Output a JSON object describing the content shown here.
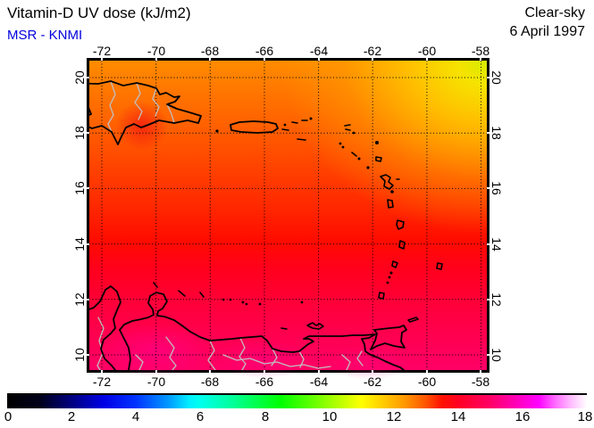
{
  "header": {
    "title": "Vitamin-D UV dose (kJ/m2)",
    "subtitle": "MSR - KNMI",
    "subtitle_color": "#0000dd",
    "condition": "Clear-sky",
    "date": "6 April 1997"
  },
  "map": {
    "lon_ticks": [
      "-72",
      "-70",
      "-68",
      "-66",
      "-64",
      "-62",
      "-60",
      "-58"
    ],
    "lat_ticks": [
      "20",
      "18",
      "16",
      "14",
      "12",
      "10"
    ]
  },
  "colorbar": {
    "min": 0,
    "max": 18,
    "tick_labels": [
      "0",
      "2",
      "4",
      "6",
      "8",
      "10",
      "12",
      "14",
      "16",
      "18"
    ],
    "stops": [
      {
        "at": 0.0,
        "color": "#000000"
      },
      {
        "at": 0.056,
        "color": "#00001a"
      },
      {
        "at": 0.111,
        "color": "#000080"
      },
      {
        "at": 0.167,
        "color": "#0000e6"
      },
      {
        "at": 0.222,
        "color": "#0033ff"
      },
      {
        "at": 0.278,
        "color": "#0099ff"
      },
      {
        "at": 0.314,
        "color": "#00eeff"
      },
      {
        "at": 0.333,
        "color": "#00ffee"
      },
      {
        "at": 0.389,
        "color": "#00ff99"
      },
      {
        "at": 0.444,
        "color": "#00ff33"
      },
      {
        "at": 0.472,
        "color": "#00ff00"
      },
      {
        "at": 0.528,
        "color": "#66ff00"
      },
      {
        "at": 0.583,
        "color": "#ccff00"
      },
      {
        "at": 0.611,
        "color": "#ffff00"
      },
      {
        "at": 0.648,
        "color": "#ffcc00"
      },
      {
        "at": 0.685,
        "color": "#ff9900"
      },
      {
        "at": 0.722,
        "color": "#ff5500"
      },
      {
        "at": 0.75,
        "color": "#ff1100"
      },
      {
        "at": 0.778,
        "color": "#ff0022"
      },
      {
        "at": 0.833,
        "color": "#ff0066"
      },
      {
        "at": 0.889,
        "color": "#ff00cc"
      },
      {
        "at": 0.917,
        "color": "#ff00ff"
      },
      {
        "at": 0.944,
        "color": "#ff66ff"
      },
      {
        "at": 0.972,
        "color": "#ffbbff"
      },
      {
        "at": 1.0,
        "color": "#ffffff"
      }
    ]
  },
  "chart_data": {
    "type": "heatmap",
    "title": "Vitamin-D UV dose (kJ/m2)",
    "annotations": [
      "MSR - KNMI",
      "Clear-sky",
      "6 April 1997"
    ],
    "x_ticks_lon": [
      -72,
      -70,
      -68,
      -66,
      -64,
      -62,
      -60,
      -58
    ],
    "y_ticks_lat": [
      20,
      18,
      16,
      14,
      12,
      10
    ],
    "xlim": [
      -72.5,
      -57.8
    ],
    "ylim": [
      9.45,
      20.6
    ],
    "grid": true,
    "region": "Caribbean Sea (Hispaniola, Puerto Rico, Lesser Antilles, Trinidad, Venezuelan coast)",
    "colorbar": {
      "min": 0,
      "max": 18,
      "ticks": [
        0,
        2,
        4,
        6,
        8,
        10,
        12,
        14,
        16,
        18
      ],
      "orientation": "horizontal",
      "position": "bottom"
    },
    "values_grid": {
      "lats": [
        20,
        18,
        16,
        14,
        12,
        10
      ],
      "lons": [
        -72,
        -70,
        -68,
        -66,
        -64,
        -62,
        -60,
        -58
      ],
      "dose_kj_m2": [
        [
          12.2,
          12.1,
          11.9,
          11.7,
          11.4,
          11.1,
          10.7,
          10.3
        ],
        [
          12.7,
          12.6,
          12.5,
          12.3,
          12.1,
          11.9,
          11.6,
          11.3
        ],
        [
          13.1,
          13.0,
          13.0,
          12.9,
          12.8,
          12.6,
          12.5,
          12.3
        ],
        [
          13.6,
          13.5,
          13.5,
          13.4,
          13.3,
          13.2,
          13.1,
          13.0
        ],
        [
          14.0,
          14.0,
          13.9,
          13.9,
          13.8,
          13.7,
          13.6,
          13.5
        ],
        [
          14.5,
          14.4,
          14.3,
          14.3,
          14.2,
          14.1,
          14.0,
          13.9
        ]
      ]
    }
  }
}
